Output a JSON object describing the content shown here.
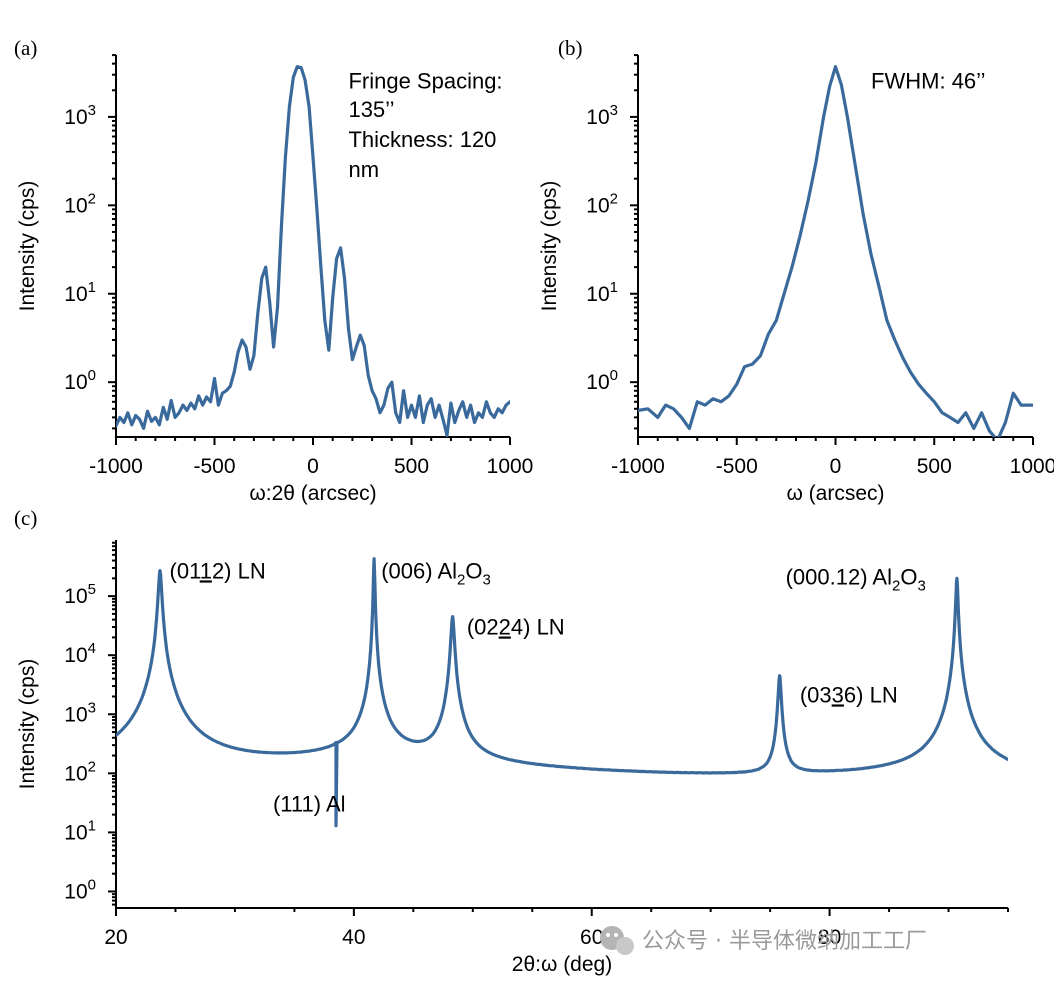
{
  "colors": {
    "line": "#3a6a9c",
    "axis": "#000000",
    "watermark": "#9a9a9a"
  },
  "watermark": "公众号 · 半导体微纳加工工厂",
  "chart_data": [
    {
      "id": "a",
      "type": "line",
      "panel_label": "(a)",
      "xlabel": "ω:2θ (arcsec)",
      "ylabel": "Intensity (cps)",
      "yscale": "log",
      "xlim": [
        -1000,
        1000
      ],
      "ylim_log10": [
        -0.62,
        3.7
      ],
      "xticks": [
        -1000,
        -500,
        0,
        500,
        1000
      ],
      "xtick_labels": [
        "-1000",
        "-500",
        "0",
        "500",
        "1000"
      ],
      "yticks_exp": [
        0,
        1,
        2,
        3
      ],
      "yticks_labels": [
        {
          "base": "10",
          "exp": "0"
        },
        {
          "base": "10",
          "exp": "1"
        },
        {
          "base": "10",
          "exp": "2"
        },
        {
          "base": "10",
          "exp": "3"
        }
      ],
      "annotations": [
        {
          "text": "Fringe Spacing:",
          "x": 180,
          "logy": 3.32
        },
        {
          "text": "135’’",
          "x": 180,
          "logy": 3.0
        },
        {
          "text": "Thickness: 120",
          "x": 180,
          "logy": 2.66
        },
        {
          "text": "nm",
          "x": 180,
          "logy": 2.32
        }
      ],
      "series": [
        {
          "name": "omega-2theta",
          "x": [
            -1000,
            -980,
            -960,
            -940,
            -920,
            -900,
            -880,
            -860,
            -840,
            -820,
            -800,
            -780,
            -760,
            -740,
            -720,
            -700,
            -680,
            -660,
            -640,
            -620,
            -600,
            -580,
            -560,
            -540,
            -520,
            -500,
            -480,
            -460,
            -440,
            -420,
            -400,
            -380,
            -360,
            -340,
            -320,
            -300,
            -280,
            -260,
            -240,
            -220,
            -200,
            -180,
            -160,
            -140,
            -120,
            -100,
            -80,
            -60,
            -40,
            -20,
            0,
            20,
            40,
            60,
            80,
            100,
            120,
            140,
            160,
            180,
            200,
            220,
            240,
            260,
            280,
            300,
            320,
            340,
            360,
            380,
            400,
            420,
            440,
            460,
            480,
            500,
            520,
            540,
            560,
            580,
            600,
            620,
            640,
            660,
            680,
            700,
            720,
            740,
            760,
            780,
            800,
            820,
            840,
            860,
            880,
            900,
            920,
            940,
            960,
            980,
            1000
          ],
          "values": [
            0.32,
            0.4,
            0.35,
            0.45,
            0.33,
            0.42,
            0.38,
            0.3,
            0.47,
            0.36,
            0.4,
            0.33,
            0.52,
            0.38,
            0.62,
            0.4,
            0.45,
            0.55,
            0.48,
            0.58,
            0.5,
            0.7,
            0.55,
            0.68,
            0.6,
            1.1,
            0.55,
            0.75,
            0.8,
            0.9,
            1.3,
            2.2,
            3.0,
            2.5,
            1.4,
            2.0,
            6.0,
            15,
            20,
            8,
            2.5,
            7,
            60,
            350,
            1300,
            2800,
            3700,
            3600,
            2600,
            1300,
            350,
            90,
            20,
            5,
            2.3,
            9,
            25,
            33,
            15,
            4,
            1.8,
            2.5,
            3.4,
            2.6,
            1.2,
            0.8,
            0.65,
            0.45,
            0.55,
            0.85,
            1.0,
            0.45,
            0.35,
            0.8,
            0.4,
            0.55,
            0.4,
            0.7,
            0.35,
            0.55,
            0.65,
            0.4,
            0.55,
            0.38,
            0.25,
            0.58,
            0.35,
            0.48,
            0.6,
            0.4,
            0.55,
            0.35,
            0.45,
            0.4,
            0.6,
            0.45,
            0.4,
            0.5,
            0.45,
            0.55,
            0.6
          ]
        }
      ]
    },
    {
      "id": "b",
      "type": "line",
      "panel_label": "(b)",
      "xlabel": "ω (arcsec)",
      "ylabel": "Intensity (cps)",
      "yscale": "log",
      "xlim": [
        -1000,
        1000
      ],
      "ylim_log10": [
        -0.62,
        3.7
      ],
      "xticks": [
        -1000,
        -500,
        0,
        500,
        1000
      ],
      "xtick_labels": [
        "-1000",
        "-500",
        "0",
        "500",
        "1000"
      ],
      "yticks_exp": [
        0,
        1,
        2,
        3
      ],
      "yticks_labels": [
        {
          "base": "10",
          "exp": "0"
        },
        {
          "base": "10",
          "exp": "1"
        },
        {
          "base": "10",
          "exp": "2"
        },
        {
          "base": "10",
          "exp": "3"
        }
      ],
      "annotations": [
        {
          "text": "FWHM: 46’’",
          "x": 180,
          "logy": 3.32
        }
      ],
      "series": [
        {
          "name": "omega",
          "x": [
            -1000,
            -950,
            -900,
            -860,
            -820,
            -780,
            -740,
            -700,
            -660,
            -620,
            -580,
            -540,
            -500,
            -460,
            -420,
            -380,
            -340,
            -300,
            -260,
            -220,
            -180,
            -140,
            -100,
            -60,
            -30,
            0,
            30,
            60,
            100,
            140,
            180,
            220,
            260,
            300,
            340,
            380,
            420,
            460,
            500,
            540,
            580,
            620,
            660,
            700,
            740,
            780,
            820,
            860,
            900,
            940,
            1000
          ],
          "values": [
            0.48,
            0.5,
            0.4,
            0.55,
            0.5,
            0.4,
            0.3,
            0.6,
            0.55,
            0.65,
            0.6,
            0.7,
            0.95,
            1.5,
            1.6,
            2.0,
            3.5,
            5,
            10,
            20,
            45,
            110,
            300,
            1000,
            2200,
            3700,
            2300,
            1000,
            280,
            80,
            28,
            12,
            5,
            3.0,
            1.9,
            1.3,
            0.95,
            0.75,
            0.6,
            0.45,
            0.4,
            0.35,
            0.45,
            0.3,
            0.45,
            0.28,
            0.22,
            0.35,
            0.75,
            0.55,
            0.55
          ]
        }
      ]
    },
    {
      "id": "c",
      "type": "line",
      "panel_label": "(c)",
      "xlabel": "2θ:ω (deg)",
      "ylabel": "Intensity (cps)",
      "yscale": "log",
      "xlim": [
        20,
        95
      ],
      "ylim_log10": [
        -0.28,
        5.95
      ],
      "xticks": [
        20,
        40,
        60,
        80
      ],
      "xtick_labels": [
        "20",
        "40",
        "60",
        "80"
      ],
      "yticks_exp": [
        0,
        1,
        2,
        3,
        4,
        5
      ],
      "yticks_labels": [
        {
          "base": "10",
          "exp": "0"
        },
        {
          "base": "10",
          "exp": "1"
        },
        {
          "base": "10",
          "exp": "2"
        },
        {
          "base": "10",
          "exp": "3"
        },
        {
          "base": "10",
          "exp": "4"
        },
        {
          "base": "10",
          "exp": "5"
        }
      ],
      "annotations": [
        {
          "text": "(01",
          "underline": "1",
          "rest": "2) LN",
          "x": 24.5,
          "logy": 5.3
        },
        {
          "text": "(006) Al",
          "sub": "2",
          "mid": "O",
          "sub2": "3",
          "x": 42.3,
          "logy": 5.3
        },
        {
          "text": "(02",
          "underline": "2",
          "rest": "4) LN",
          "x": 49.5,
          "logy": 4.35
        },
        {
          "text": "(000.12) Al",
          "sub": "2",
          "mid": "O",
          "sub2": "3",
          "x": 76.3,
          "logy": 5.2
        },
        {
          "text": "(03",
          "underline": "3",
          "rest": "6) LN",
          "x": 77.5,
          "logy": 3.2
        },
        {
          "text": "(111) Al",
          "x": 33.2,
          "logy": 1.35
        }
      ],
      "peaks": [
        {
          "center": 23.7,
          "height": 270000,
          "width": 0.3
        },
        {
          "center": 38.5,
          "height": 13,
          "width": 0.25
        },
        {
          "center": 41.7,
          "height": 430000,
          "width": 0.12
        },
        {
          "center": 48.3,
          "height": 45000,
          "width": 0.3
        },
        {
          "center": 75.8,
          "height": 4500,
          "width": 0.28
        },
        {
          "center": 90.7,
          "height": 200000,
          "width": 0.2
        }
      ]
    }
  ]
}
